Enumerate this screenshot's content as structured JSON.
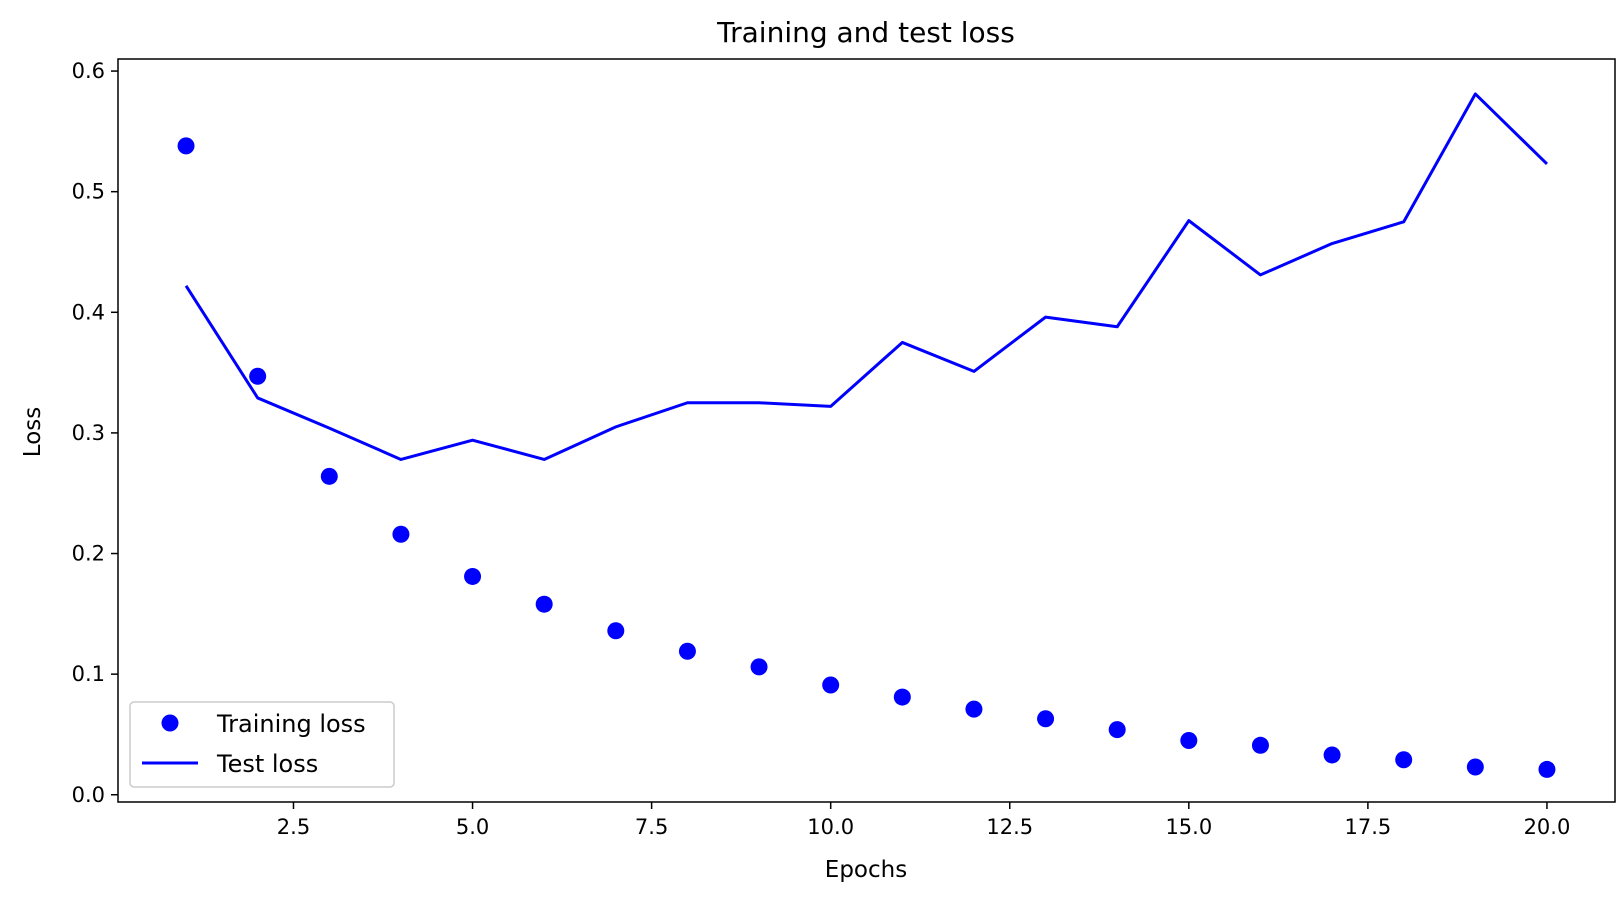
{
  "chart_data": {
    "type": "line",
    "title": "Training and test loss",
    "xlabel": "Epochs",
    "ylabel": "Loss",
    "xlim": [
      0.05,
      20.95
    ],
    "ylim": [
      -0.006,
      0.61
    ],
    "xticks": [
      2.5,
      5.0,
      7.5,
      10.0,
      12.5,
      15.0,
      17.5,
      20.0
    ],
    "xtick_labels": [
      "2.5",
      "5.0",
      "7.5",
      "10.0",
      "12.5",
      "15.0",
      "17.5",
      "20.0"
    ],
    "yticks": [
      0.0,
      0.1,
      0.2,
      0.3,
      0.4,
      0.5,
      0.6
    ],
    "ytick_labels": [
      "0.0",
      "0.1",
      "0.2",
      "0.3",
      "0.4",
      "0.5",
      "0.6"
    ],
    "grid": false,
    "legend_position": "bottom-left",
    "x": [
      1,
      2,
      3,
      4,
      5,
      6,
      7,
      8,
      9,
      10,
      11,
      12,
      13,
      14,
      15,
      16,
      17,
      18,
      19,
      20
    ],
    "series": [
      {
        "name": "Training loss",
        "style": "markers",
        "color": "#0000ff",
        "values": [
          0.538,
          0.347,
          0.264,
          0.216,
          0.181,
          0.158,
          0.136,
          0.119,
          0.106,
          0.091,
          0.081,
          0.071,
          0.063,
          0.054,
          0.045,
          0.041,
          0.033,
          0.029,
          0.023,
          0.021
        ]
      },
      {
        "name": "Test loss",
        "style": "line",
        "color": "#0000ff",
        "values": [
          0.422,
          0.329,
          0.304,
          0.278,
          0.294,
          0.278,
          0.305,
          0.325,
          0.325,
          0.322,
          0.375,
          0.351,
          0.396,
          0.388,
          0.476,
          0.431,
          0.457,
          0.475,
          0.581,
          0.523
        ]
      }
    ]
  }
}
